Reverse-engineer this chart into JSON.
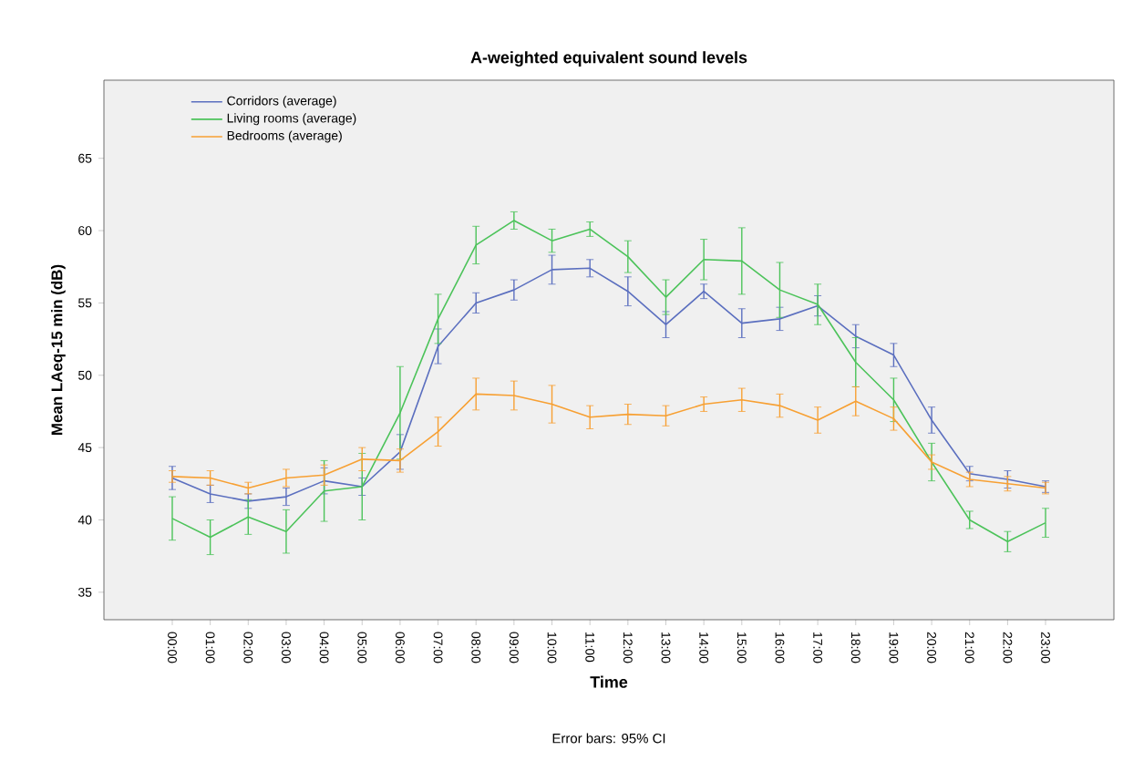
{
  "chart_data": {
    "type": "line",
    "title": "A-weighted equivalent sound levels",
    "xlabel": "Time",
    "ylabel": "Mean LAeq-15 min (dB)",
    "categories": [
      "00:00",
      "01:00",
      "02:00",
      "03:00",
      "04:00",
      "05:00",
      "06:00",
      "07:00",
      "08:00",
      "09:00",
      "10:00",
      "11:00",
      "12:00",
      "13:00",
      "14:00",
      "15:00",
      "16:00",
      "17:00",
      "18:00",
      "19:00",
      "20:00",
      "21:00",
      "22:00",
      "23:00"
    ],
    "series": [
      {
        "name": "Corridors (average)",
        "color": "#5b6fbf",
        "values": [
          42.9,
          41.8,
          41.3,
          41.6,
          42.7,
          42.3,
          44.7,
          52.0,
          55.0,
          55.9,
          57.3,
          57.4,
          55.8,
          53.5,
          55.8,
          53.6,
          53.9,
          54.8,
          52.7,
          51.4,
          46.9,
          43.2,
          42.8,
          42.3
        ],
        "errors": [
          0.8,
          0.6,
          0.5,
          0.6,
          0.9,
          0.6,
          1.2,
          1.2,
          0.7,
          0.7,
          1.0,
          0.6,
          1.0,
          0.9,
          0.5,
          1.0,
          0.8,
          0.7,
          0.8,
          0.8,
          0.9,
          0.5,
          0.6,
          0.4
        ]
      },
      {
        "name": "Living rooms (average)",
        "color": "#4cc35a",
        "values": [
          40.1,
          38.8,
          40.2,
          39.2,
          42.0,
          42.3,
          47.4,
          53.9,
          59.0,
          60.7,
          59.3,
          60.1,
          58.2,
          55.4,
          58.0,
          57.9,
          55.9,
          54.9,
          50.9,
          48.3,
          44.0,
          40.0,
          38.5,
          39.8
        ],
        "errors": [
          1.5,
          1.2,
          1.2,
          1.5,
          2.1,
          2.3,
          3.2,
          1.7,
          1.3,
          0.6,
          0.8,
          0.5,
          1.1,
          1.2,
          1.4,
          2.3,
          1.9,
          1.4,
          1.7,
          1.5,
          1.3,
          0.6,
          0.7,
          1.0
        ]
      },
      {
        "name": "Bedrooms (average)",
        "color": "#f7a033",
        "values": [
          43.0,
          42.9,
          42.2,
          42.9,
          43.1,
          44.2,
          44.1,
          46.1,
          48.7,
          48.6,
          48.0,
          47.1,
          47.3,
          47.2,
          48.0,
          48.3,
          47.9,
          46.9,
          48.2,
          47.0,
          44.0,
          42.8,
          42.5,
          42.2
        ],
        "errors": [
          0.4,
          0.5,
          0.4,
          0.6,
          0.7,
          0.8,
          0.8,
          1.0,
          1.1,
          1.0,
          1.3,
          0.8,
          0.7,
          0.7,
          0.5,
          0.8,
          0.8,
          0.9,
          1.0,
          0.8,
          0.5,
          0.5,
          0.5,
          0.4
        ]
      }
    ],
    "ylim": [
      33.1,
      70.4
    ],
    "yticks": [
      35,
      40,
      45,
      50,
      55,
      60,
      65
    ],
    "legend": "top left",
    "grid": false,
    "marker": "none",
    "line_style": "solid",
    "annotations": [
      "Error bars: 95% CI"
    ]
  }
}
